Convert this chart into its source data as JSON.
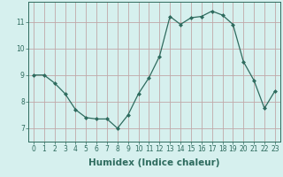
{
  "x": [
    0,
    1,
    2,
    3,
    4,
    5,
    6,
    7,
    8,
    9,
    10,
    11,
    12,
    13,
    14,
    15,
    16,
    17,
    18,
    19,
    20,
    21,
    22,
    23
  ],
  "y": [
    9.0,
    9.0,
    8.7,
    8.3,
    7.7,
    7.4,
    7.35,
    7.35,
    7.0,
    7.5,
    8.3,
    8.9,
    9.7,
    11.2,
    10.9,
    11.15,
    11.2,
    11.4,
    11.25,
    10.9,
    9.5,
    8.8,
    7.75,
    8.4
  ],
  "line_color": "#2e6b5e",
  "marker": "D",
  "marker_size": 2.0,
  "bg_color": "#d6f0ee",
  "grid_color": "#c0a8a8",
  "axis_color": "#2e6b5e",
  "xlabel": "Humidex (Indice chaleur)",
  "xlim": [
    -0.5,
    23.5
  ],
  "ylim": [
    6.5,
    11.75
  ],
  "yticks": [
    7,
    8,
    9,
    10,
    11
  ],
  "xticks": [
    0,
    1,
    2,
    3,
    4,
    5,
    6,
    7,
    8,
    9,
    10,
    11,
    12,
    13,
    14,
    15,
    16,
    17,
    18,
    19,
    20,
    21,
    22,
    23
  ],
  "xtick_labels": [
    "0",
    "1",
    "2",
    "3",
    "4",
    "5",
    "6",
    "7",
    "8",
    "9",
    "10",
    "11",
    "12",
    "13",
    "14",
    "15",
    "16",
    "17",
    "18",
    "19",
    "20",
    "21",
    "22",
    "23"
  ],
  "tick_fontsize": 5.5,
  "xlabel_fontsize": 7.5
}
